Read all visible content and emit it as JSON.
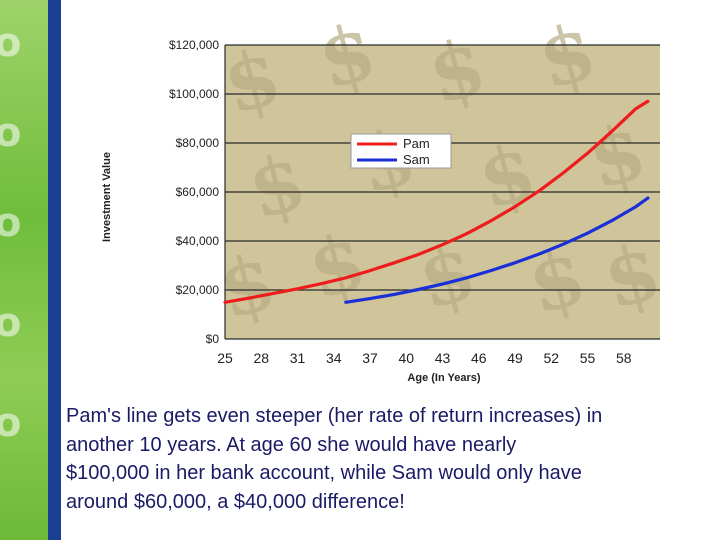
{
  "colors": {
    "plot_background": "#cfc49a",
    "dollar_watermark": "#b9ad84",
    "grid": "#2a2a2a",
    "pam": "#ee1c1c",
    "sam": "#1a2fd8",
    "caption_text": "#1a1a66",
    "accent_bar": "#1a3f93",
    "side_strip": "#7cc446"
  },
  "icons": {
    "background_pattern": "dollar-sign-icon"
  },
  "caption": {
    "line1": "Pam's line gets even steeper (her rate of return increases) in",
    "line2": "another 10 years. At age 60 she would have nearly",
    "line3": "$100,000 in her bank account, while Sam would only have",
    "line4": "around $60,000, a $40,000 difference!"
  },
  "chart_data": {
    "type": "line",
    "xlabel": "Age (In Years)",
    "ylabel": "Investment Value",
    "xlim": [
      25,
      61
    ],
    "ylim": [
      0,
      120000
    ],
    "x_ticks": [
      25,
      28,
      31,
      34,
      37,
      40,
      43,
      46,
      49,
      52,
      55,
      58
    ],
    "x_tick_labels": [
      "25",
      "28",
      "31",
      "34",
      "37",
      "40",
      "43",
      "46",
      "49",
      "52",
      "55",
      "58"
    ],
    "y_ticks": [
      0,
      20000,
      40000,
      60000,
      80000,
      100000,
      120000
    ],
    "y_tick_labels": [
      "$0",
      "$20,000",
      "$40,000",
      "$60,000",
      "$80,000",
      "$100,000",
      "$120,000"
    ],
    "grid": true,
    "legend_position": "top-center",
    "series": [
      {
        "name": "Pam",
        "color": "#ee1c1c",
        "x": [
          25,
          27,
          29,
          31,
          33,
          35,
          37,
          39,
          41,
          43,
          45,
          47,
          49,
          51,
          53,
          55,
          57,
          59,
          60
        ],
        "values": [
          15000,
          16700,
          18600,
          20500,
          22600,
          25000,
          27900,
          31100,
          34500,
          38500,
          43000,
          48200,
          54000,
          60500,
          67800,
          75800,
          84700,
          94000,
          97000
        ]
      },
      {
        "name": "Sam",
        "color": "#1a2fd8",
        "x": [
          35,
          37,
          39,
          41,
          43,
          45,
          47,
          49,
          51,
          53,
          55,
          57,
          59,
          60
        ],
        "values": [
          15000,
          16500,
          18200,
          20200,
          22400,
          25000,
          27900,
          31100,
          34700,
          38700,
          43200,
          48300,
          54000,
          57500
        ]
      }
    ]
  }
}
